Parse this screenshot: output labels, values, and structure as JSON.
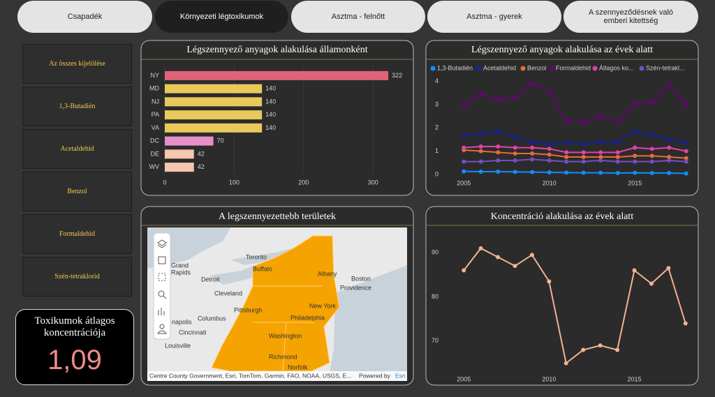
{
  "tabs": [
    "Csapadék",
    "Környezeti légtoxikumok",
    "Asztma - felnőtt",
    "Asztma - gyerek",
    "A szennyeződésnek való emberi kitettség"
  ],
  "slicers": [
    "Az összes kijelölése",
    "1,3-Butadién",
    "Acetaldehid",
    "Benzol",
    "Formaldehid",
    "Szén-tetraklorid"
  ],
  "kpi": {
    "title": "Toxikumok átlagos koncentrációja",
    "value": "1,09"
  },
  "map": {
    "title": "A legszennyezettebb területek",
    "labels": [
      "Toronto",
      "Buffalo",
      "Albany",
      "Grand",
      "Rapids",
      "Detroit",
      "Cleveland",
      "Boston",
      "Providence",
      "Pittsburgh",
      "New York",
      "Columbus",
      "Philadelphia",
      "napolis",
      "Cincinnati",
      "Washington",
      "Louisville",
      "Richmond",
      "Norfolk"
    ],
    "attribution": "Centre County Government, Esri, TomTom, Garmin, FAO, NOAA, USGS, E...",
    "powered_by": "Powered by",
    "esri": "Esri"
  },
  "chart_data": [
    {
      "type": "bar",
      "orientation": "horizontal",
      "title": "Légszennyező anyagok alakulása államonként",
      "categories": [
        "NY",
        "MD",
        "NJ",
        "PA",
        "VA",
        "DC",
        "DE",
        "WV"
      ],
      "values": [
        322,
        140,
        140,
        140,
        140,
        70,
        42,
        42
      ],
      "colors": [
        "#e06377",
        "#e8c95a",
        "#e8c95a",
        "#e8c95a",
        "#e8c95a",
        "#e68fc9",
        "#f5c6b0",
        "#f5c6b0"
      ],
      "xlim": [
        0,
        340
      ],
      "xticks": [
        0,
        100,
        200,
        300
      ],
      "grid": true
    },
    {
      "type": "line",
      "title": "Légszennyező anyagok alakulása az évek alatt",
      "x": [
        2005,
        2006,
        2007,
        2008,
        2009,
        2010,
        2011,
        2012,
        2013,
        2014,
        2015,
        2016,
        2017,
        2018
      ],
      "series": [
        {
          "name": "1,3-Butadién",
          "color": "#118dff",
          "values": [
            0.13,
            0.12,
            0.12,
            0.11,
            0.1,
            0.09,
            0.08,
            0.07,
            0.07,
            0.06,
            0.07,
            0.06,
            0.06,
            0.04
          ]
        },
        {
          "name": "Acetaldehid",
          "color": "#12239e",
          "values": [
            1.7,
            1.75,
            1.85,
            1.6,
            1.4,
            1.3,
            1.35,
            1.3,
            1.4,
            1.4,
            1.85,
            1.7,
            1.5,
            1.35
          ]
        },
        {
          "name": "Benzol",
          "color": "#e66c37",
          "values": [
            1.05,
            1.0,
            0.95,
            0.9,
            0.9,
            0.85,
            0.75,
            0.75,
            0.75,
            0.75,
            0.8,
            0.8,
            0.75,
            0.7
          ]
        },
        {
          "name": "Formaldehid",
          "color": "#6b007b",
          "values": [
            2.95,
            3.45,
            3.2,
            3.3,
            3.9,
            3.55,
            2.3,
            2.25,
            2.5,
            2.3,
            3.05,
            3.1,
            3.85,
            2.95
          ]
        },
        {
          "name": "Átlagos ko...",
          "color": "#e044a7",
          "values": [
            1.15,
            1.2,
            1.2,
            1.15,
            1.15,
            1.1,
            0.95,
            0.95,
            0.95,
            0.95,
            1.15,
            1.1,
            1.15,
            1.0
          ]
        },
        {
          "name": "Szén-tetrakl...",
          "color": "#744ec2",
          "values": [
            0.55,
            0.55,
            0.6,
            0.6,
            0.65,
            0.6,
            0.55,
            0.55,
            0.6,
            0.55,
            0.55,
            0.55,
            0.6,
            0.55
          ]
        }
      ],
      "xlim": [
        2004.5,
        2018.5
      ],
      "xticks": [
        2005,
        2010,
        2015
      ],
      "ylim": [
        0,
        4.2
      ],
      "yticks": [
        0,
        1,
        2,
        3,
        4
      ],
      "legend": "top"
    },
    {
      "type": "line",
      "title": "Koncentráció alakulása az évek alatt",
      "x": [
        2005,
        2006,
        2007,
        2008,
        2009,
        2010,
        2011,
        2012,
        2013,
        2014,
        2015,
        2016,
        2017,
        2018
      ],
      "series": [
        {
          "color": "#f4b28f",
          "values": [
            86,
            91,
            89,
            87,
            89.5,
            83.5,
            65,
            68,
            69,
            68,
            86,
            83,
            86.5,
            74
          ]
        }
      ],
      "xlim": [
        2004.5,
        2018.5
      ],
      "xticks": [
        2005,
        2010,
        2015
      ],
      "ylim": [
        63.5,
        93.5
      ],
      "yticks": [
        70,
        80,
        90
      ]
    }
  ]
}
